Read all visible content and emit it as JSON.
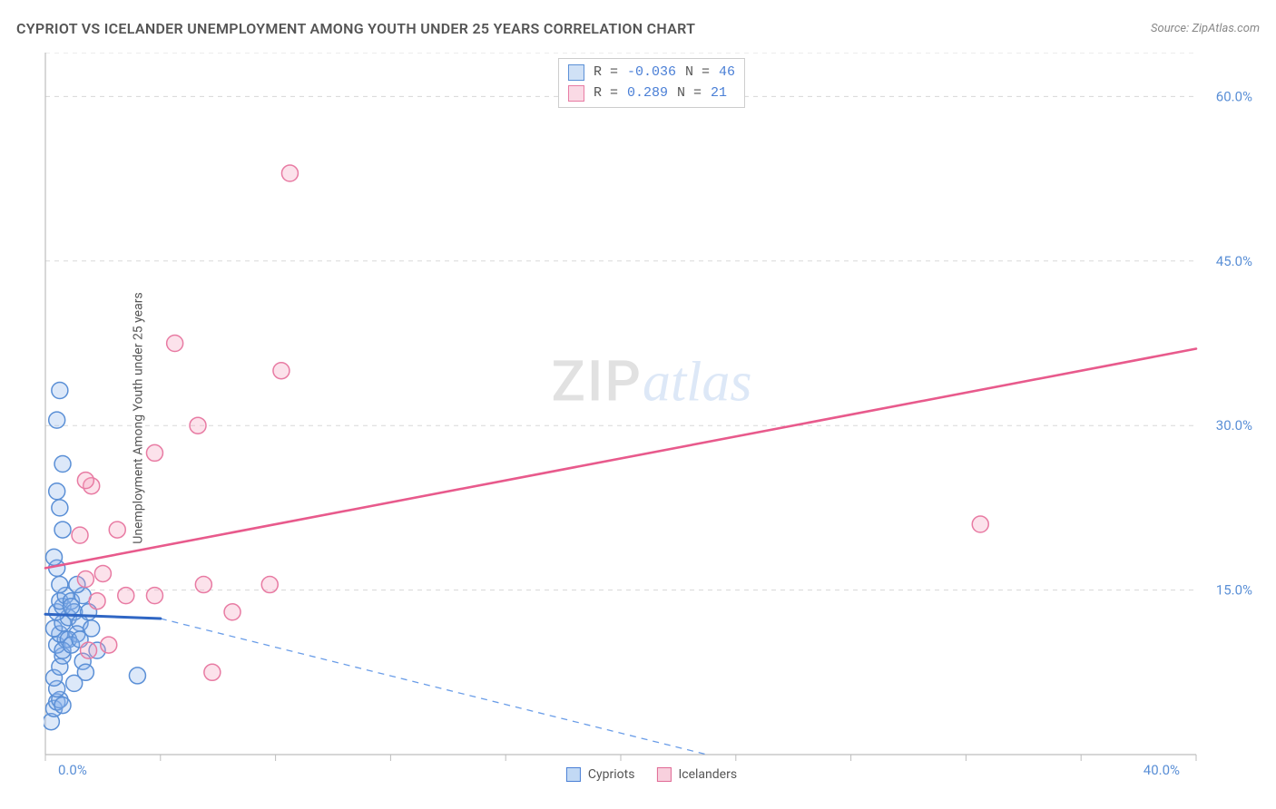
{
  "header": {
    "title": "CYPRIOT VS ICELANDER UNEMPLOYMENT AMONG YOUTH UNDER 25 YEARS CORRELATION CHART",
    "source_prefix": "Source: ",
    "source_name": "ZipAtlas.com"
  },
  "y_axis_label": "Unemployment Among Youth under 25 years",
  "watermark": {
    "part1": "ZIP",
    "part2": "atlas"
  },
  "stats": {
    "series1": {
      "r_label": "R =",
      "r_value": "-0.036",
      "n_label": "N =",
      "n_value": "46"
    },
    "series2": {
      "r_label": "R =",
      "r_value": " 0.289",
      "n_label": "N =",
      "n_value": "21"
    }
  },
  "legend": {
    "series1_label": "Cypriots",
    "series2_label": "Icelanders"
  },
  "chart": {
    "type": "scatter",
    "xlim": [
      0,
      40
    ],
    "ylim": [
      0,
      64
    ],
    "x_ticks": [
      0,
      4,
      8,
      12,
      16,
      20,
      24,
      28,
      32,
      36,
      40
    ],
    "x_tick_labels_shown": {
      "0": "0.0%",
      "40": "40.0%"
    },
    "y_gridlines": [
      15,
      30,
      45,
      60,
      64
    ],
    "y_tick_labels": {
      "15": "15.0%",
      "30": "30.0%",
      "45": "45.0%",
      "60": "60.0%"
    },
    "background_color": "#ffffff",
    "grid_color": "#d8d8d8",
    "axis_color": "#bdbdbd",
    "tick_label_color": "#5a8fd6",
    "marker_radius": 9,
    "marker_stroke_width": 1.5,
    "series": {
      "cypriots": {
        "fill": "rgba(140,180,235,0.30)",
        "stroke": "#5a8fd6",
        "points": [
          [
            0.2,
            3.0
          ],
          [
            0.3,
            4.2
          ],
          [
            0.4,
            4.8
          ],
          [
            0.5,
            5.0
          ],
          [
            0.6,
            4.5
          ],
          [
            0.4,
            6.0
          ],
          [
            0.3,
            7.0
          ],
          [
            0.5,
            8.0
          ],
          [
            0.6,
            9.0
          ],
          [
            0.4,
            10.0
          ],
          [
            0.7,
            10.5
          ],
          [
            0.5,
            11.0
          ],
          [
            0.3,
            11.5
          ],
          [
            0.6,
            12.0
          ],
          [
            0.8,
            12.5
          ],
          [
            0.4,
            13.0
          ],
          [
            0.6,
            13.5
          ],
          [
            0.5,
            14.0
          ],
          [
            0.7,
            14.5
          ],
          [
            0.9,
            14.0
          ],
          [
            1.0,
            13.0
          ],
          [
            1.2,
            12.0
          ],
          [
            1.1,
            11.0
          ],
          [
            0.8,
            10.5
          ],
          [
            0.6,
            9.5
          ],
          [
            1.3,
            8.5
          ],
          [
            1.4,
            7.5
          ],
          [
            1.0,
            6.5
          ],
          [
            0.9,
            10.0
          ],
          [
            1.2,
            10.5
          ],
          [
            0.5,
            15.5
          ],
          [
            0.4,
            17.0
          ],
          [
            0.3,
            18.0
          ],
          [
            0.6,
            20.5
          ],
          [
            0.5,
            22.5
          ],
          [
            0.4,
            24.0
          ],
          [
            0.6,
            26.5
          ],
          [
            0.4,
            30.5
          ],
          [
            0.5,
            33.2
          ],
          [
            3.2,
            7.2
          ],
          [
            1.8,
            9.5
          ],
          [
            1.6,
            11.5
          ],
          [
            1.5,
            13.0
          ],
          [
            1.3,
            14.5
          ],
          [
            1.1,
            15.5
          ],
          [
            0.9,
            13.5
          ]
        ],
        "trend_solid": {
          "x1": 0,
          "y1": 12.8,
          "x2": 4.0,
          "y2": 12.4,
          "color": "#2f66c4",
          "width": 3
        },
        "trend_dashed": {
          "x1": 4.0,
          "y1": 12.4,
          "x2": 23.0,
          "y2": 0,
          "color": "#6a9de8",
          "width": 1.3,
          "dash": "7 6"
        }
      },
      "icelanders": {
        "fill": "rgba(245,160,190,0.30)",
        "stroke": "#e87ba3",
        "points": [
          [
            1.5,
            9.5
          ],
          [
            2.2,
            10.0
          ],
          [
            1.8,
            14.0
          ],
          [
            2.8,
            14.5
          ],
          [
            3.8,
            14.5
          ],
          [
            1.4,
            16.0
          ],
          [
            2.0,
            16.5
          ],
          [
            1.2,
            20.0
          ],
          [
            2.5,
            20.5
          ],
          [
            1.6,
            24.5
          ],
          [
            1.4,
            25.0
          ],
          [
            3.8,
            27.5
          ],
          [
            5.3,
            30.0
          ],
          [
            4.5,
            37.5
          ],
          [
            8.2,
            35.0
          ],
          [
            7.8,
            15.5
          ],
          [
            5.5,
            15.5
          ],
          [
            6.5,
            13.0
          ],
          [
            5.8,
            7.5
          ],
          [
            8.5,
            53.0
          ],
          [
            32.5,
            21.0
          ]
        ],
        "trend_solid": {
          "x1": 0,
          "y1": 17.0,
          "x2": 40,
          "y2": 37.0,
          "color": "#e85a8c",
          "width": 2.6
        }
      }
    }
  }
}
